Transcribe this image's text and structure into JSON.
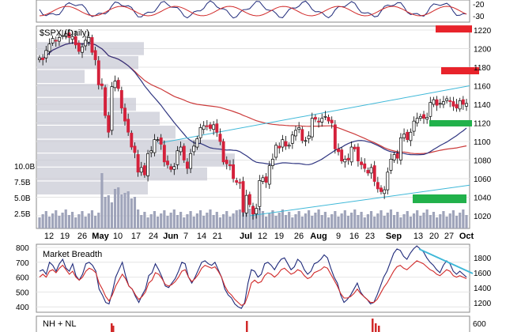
{
  "chart_data": [
    {
      "panel": "top-indicator",
      "type": "line",
      "right_ticks": [
        "-20",
        "-30"
      ],
      "description_note": "cropped oscillator panel at top"
    },
    {
      "panel": "price",
      "type": "candlestick",
      "title": "$SPX (Daily)",
      "ylim": [
        1010,
        1235
      ],
      "y_ticks": [
        1220,
        1200,
        1180,
        1160,
        1140,
        1120,
        1100,
        1080,
        1060,
        1040,
        1020
      ],
      "y_tick_labels": [
        "1220",
        "1200",
        "1180",
        "1160",
        "1140",
        "1120",
        "1100",
        "1080",
        "1060",
        "1040",
        "1020"
      ],
      "x_labels": [
        "12",
        "19",
        "26",
        "May",
        "10",
        "17",
        "24",
        "Jun",
        "7",
        "14",
        "21",
        "Jul",
        "12",
        "19",
        "26",
        "Aug",
        "9",
        "16",
        "23",
        "Sep",
        "13",
        "20",
        "27",
        "Oct"
      ],
      "volume_labels": [
        "10.0B",
        "7.5B",
        "5.0B",
        "2.5B"
      ],
      "closes": [
        1190,
        1188,
        1198,
        1205,
        1211,
        1208,
        1212,
        1214,
        1216,
        1212,
        1213,
        1204,
        1197,
        1202,
        1209,
        1212,
        1196,
        1188,
        1161,
        1160,
        1128,
        1110,
        1159,
        1165,
        1157,
        1136,
        1122,
        1110,
        1094,
        1088,
        1067,
        1072,
        1064,
        1087,
        1090,
        1102,
        1102,
        1097,
        1078,
        1075,
        1070,
        1073,
        1090,
        1094,
        1080,
        1071,
        1087,
        1095,
        1103,
        1115,
        1117,
        1116,
        1114,
        1118,
        1110,
        1100,
        1078,
        1076,
        1074,
        1060,
        1056,
        1055,
        1024,
        1042,
        1032,
        1022,
        1028,
        1058,
        1061,
        1056,
        1074,
        1081,
        1096,
        1093,
        1102,
        1095,
        1096,
        1107,
        1112,
        1115,
        1101,
        1101,
        1106,
        1125,
        1124,
        1121,
        1125,
        1127,
        1122,
        1120,
        1092,
        1089,
        1079,
        1081,
        1080,
        1094,
        1092,
        1079,
        1075,
        1071,
        1066,
        1072,
        1057,
        1049,
        1046,
        1048,
        1067,
        1081,
        1086,
        1082,
        1104,
        1108,
        1102,
        1110,
        1122,
        1125,
        1127,
        1125,
        1126,
        1142,
        1145,
        1139,
        1141,
        1143,
        1146,
        1143,
        1138,
        1136,
        1144,
        1140,
        1141
      ],
      "volume_relative": "shown as bars at bottom of price panel"
    },
    {
      "panel": "breadth",
      "type": "line",
      "title": "Market Breadth",
      "left_ticks": [
        "800",
        "700",
        "600",
        "500",
        "400"
      ],
      "right_ticks": [
        "1800",
        "1600",
        "1400",
        "1200"
      ],
      "series": [
        {
          "color": "#1f2a7a",
          "values": [
            640,
            650,
            620,
            700,
            680,
            640,
            690,
            720,
            660,
            640,
            690,
            610,
            580,
            620,
            690,
            700,
            680,
            640,
            520,
            480,
            430,
            420,
            500,
            600,
            650,
            700,
            610,
            540,
            520,
            470,
            430,
            480,
            520,
            610,
            630,
            690,
            650,
            600,
            540,
            530,
            560,
            590,
            640,
            700,
            690,
            600,
            560,
            600,
            650,
            700,
            710,
            690,
            680,
            700,
            650,
            600,
            520,
            480,
            460,
            420,
            400,
            390,
            430,
            560,
            650,
            640,
            600,
            620,
            690,
            700,
            680,
            650,
            690,
            720,
            730,
            690,
            650,
            670,
            720,
            700,
            650,
            620,
            640,
            690,
            700,
            720,
            750,
            730,
            660,
            600,
            560,
            480,
            430,
            450,
            480,
            520,
            560,
            500,
            470,
            450,
            420,
            430,
            480,
            540,
            600,
            640,
            700,
            760,
            790,
            780,
            740,
            720,
            760,
            790,
            810,
            790,
            770,
            730,
            700,
            680,
            650,
            630,
            680,
            710,
            690,
            640,
            620,
            640,
            620,
            600
          ]
        },
        {
          "color": "#d12a2a",
          "values": [
            600,
            620,
            600,
            640,
            650,
            630,
            660,
            680,
            650,
            620,
            640,
            600,
            580,
            600,
            640,
            660,
            650,
            630,
            560,
            520,
            470,
            440,
            480,
            540,
            580,
            620,
            590,
            540,
            520,
            480,
            450,
            470,
            500,
            560,
            580,
            630,
            620,
            590,
            550,
            540,
            550,
            570,
            600,
            640,
            650,
            600,
            570,
            590,
            620,
            660,
            680,
            670,
            660,
            670,
            640,
            600,
            540,
            500,
            480,
            450,
            430,
            410,
            420,
            480,
            560,
            580,
            560,
            570,
            610,
            630,
            620,
            600,
            620,
            650,
            660,
            640,
            620,
            630,
            650,
            640,
            610,
            590,
            600,
            630,
            640,
            650,
            670,
            660,
            620,
            580,
            540,
            490,
            460,
            460,
            470,
            490,
            520,
            490,
            470,
            450,
            430,
            430,
            450,
            490,
            530,
            560,
            600,
            640,
            670,
            680,
            660,
            650,
            670,
            690,
            710,
            700,
            690,
            670,
            650,
            640,
            620,
            610,
            630,
            650,
            640,
            610,
            600,
            610,
            600,
            590
          ]
        }
      ],
      "ylim": [
        300,
        820
      ]
    },
    {
      "panel": "nh-nl",
      "type": "bar",
      "title": "NH + NL",
      "right_ticks": [
        "600"
      ]
    }
  ],
  "annotations": {
    "resistance_color": "#e8232b",
    "support_color": "#21b14b",
    "trendline_color": "#3fb8d8",
    "ma_short_color": "#2f3580",
    "ma_long_color": "#cc3b3b"
  }
}
